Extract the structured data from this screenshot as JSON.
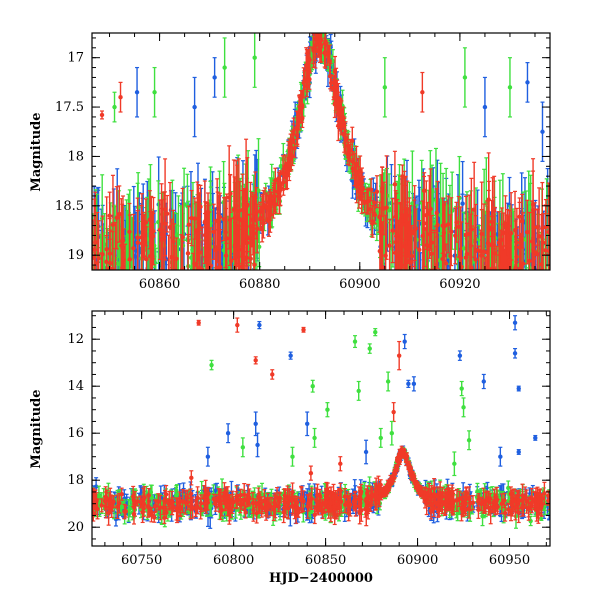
{
  "chart_data": [
    {
      "type": "scatter",
      "panel": "top",
      "title": "",
      "xlabel": "",
      "ylabel": "Magnitude",
      "xlim": [
        60846.5,
        60938
      ],
      "ylim": [
        19.15,
        16.75
      ],
      "y_inverted": true,
      "xticks": [
        60860,
        60880,
        60900,
        60920
      ],
      "yticks": [
        17,
        17.5,
        18,
        18.5,
        19
      ],
      "ytick_labels": [
        "17",
        "17.5",
        "18",
        "18.5",
        "19"
      ],
      "series": [
        {
          "name": "blue",
          "color": "#1f5fe0"
        },
        {
          "name": "green",
          "color": "#3fe03f"
        },
        {
          "name": "red",
          "color": "#f03a28"
        }
      ],
      "model": {
        "peak_x": 60892,
        "peak_mag": 16.8,
        "baseline_mag": 19.0,
        "tE": 5.5
      },
      "outliers": [
        {
          "series": "red",
          "x": 60848.5,
          "y": 17.58,
          "err": 0.04
        },
        {
          "series": "red",
          "x": 60852.2,
          "y": 17.4,
          "err": 0.15
        },
        {
          "series": "red",
          "x": 60912.5,
          "y": 17.35,
          "err": 0.2
        },
        {
          "series": "green",
          "x": 60851,
          "y": 17.5,
          "err": 0.15
        },
        {
          "series": "green",
          "x": 60859,
          "y": 17.35,
          "err": 0.25
        },
        {
          "series": "green",
          "x": 60873,
          "y": 17.1,
          "err": 0.3
        },
        {
          "series": "green",
          "x": 60879,
          "y": 17.0,
          "err": 0.3
        },
        {
          "series": "green",
          "x": 60905,
          "y": 17.3,
          "err": 0.3
        },
        {
          "series": "green",
          "x": 60921,
          "y": 17.2,
          "err": 0.3
        },
        {
          "series": "green",
          "x": 60930,
          "y": 17.3,
          "err": 0.3
        },
        {
          "series": "blue",
          "x": 60855.5,
          "y": 17.35,
          "err": 0.25
        },
        {
          "series": "blue",
          "x": 60867,
          "y": 17.5,
          "err": 0.3
        },
        {
          "series": "blue",
          "x": 60871,
          "y": 17.2,
          "err": 0.2
        },
        {
          "series": "blue",
          "x": 60925,
          "y": 17.5,
          "err": 0.3
        },
        {
          "series": "blue",
          "x": 60933.5,
          "y": 17.25,
          "err": 0.2
        },
        {
          "series": "blue",
          "x": 60936.5,
          "y": 17.75,
          "err": 0.3
        }
      ]
    },
    {
      "type": "scatter",
      "panel": "bottom",
      "title": "",
      "xlabel": "HJD−2400000",
      "ylabel": "Magnitude",
      "xlim": [
        60723,
        60972
      ],
      "ylim": [
        20.8,
        10.8
      ],
      "y_inverted": true,
      "xticks": [
        60750,
        60800,
        60850,
        60900,
        60950
      ],
      "yticks": [
        12,
        14,
        16,
        18,
        20
      ],
      "series": [
        {
          "name": "blue",
          "color": "#1f5fe0"
        },
        {
          "name": "green",
          "color": "#3fe03f"
        },
        {
          "name": "red",
          "color": "#f03a28"
        }
      ],
      "model": {
        "peak_x": 60892,
        "peak_mag": 16.8,
        "baseline_mag": 19.0,
        "tE": 5.5
      },
      "outliers": [
        {
          "series": "red",
          "x": 60781,
          "y": 11.3,
          "err": 0.1
        },
        {
          "series": "red",
          "x": 60802,
          "y": 11.4,
          "err": 0.3
        },
        {
          "series": "red",
          "x": 60812,
          "y": 12.9,
          "err": 0.15
        },
        {
          "series": "red",
          "x": 60821,
          "y": 13.5,
          "err": 0.2
        },
        {
          "series": "red",
          "x": 60838,
          "y": 11.6,
          "err": 0.1
        },
        {
          "series": "red",
          "x": 60887,
          "y": 15.1,
          "err": 0.4
        },
        {
          "series": "red",
          "x": 60890,
          "y": 12.7,
          "err": 0.6
        },
        {
          "series": "blue",
          "x": 60814,
          "y": 11.4,
          "err": 0.15
        },
        {
          "series": "blue",
          "x": 60831,
          "y": 12.7,
          "err": 0.15
        },
        {
          "series": "blue",
          "x": 60893,
          "y": 12.1,
          "err": 0.3
        },
        {
          "series": "blue",
          "x": 60895,
          "y": 13.9,
          "err": 0.15
        },
        {
          "series": "blue",
          "x": 60898,
          "y": 13.9,
          "err": 0.3
        },
        {
          "series": "blue",
          "x": 60923,
          "y": 12.7,
          "err": 0.2
        },
        {
          "series": "blue",
          "x": 60936,
          "y": 13.8,
          "err": 0.3
        },
        {
          "series": "blue",
          "x": 60953,
          "y": 11.3,
          "err": 0.3
        },
        {
          "series": "blue",
          "x": 60953,
          "y": 12.6,
          "err": 0.2
        },
        {
          "series": "blue",
          "x": 60955,
          "y": 14.1,
          "err": 0.1
        },
        {
          "series": "blue",
          "x": 60955,
          "y": 16.8,
          "err": 0.1
        },
        {
          "series": "blue",
          "x": 60964,
          "y": 16.2,
          "err": 0.1
        },
        {
          "series": "blue",
          "x": 60812,
          "y": 15.6,
          "err": 0.5
        },
        {
          "series": "blue",
          "x": 60813,
          "y": 16.5,
          "err": 0.5
        },
        {
          "series": "blue",
          "x": 60797,
          "y": 16.0,
          "err": 0.4
        },
        {
          "series": "blue",
          "x": 60840,
          "y": 15.6,
          "err": 0.5
        },
        {
          "series": "blue",
          "x": 60872,
          "y": 16.8,
          "err": 0.5
        },
        {
          "series": "blue",
          "x": 60945,
          "y": 17.0,
          "err": 0.4
        },
        {
          "series": "blue",
          "x": 60786,
          "y": 17.0,
          "err": 0.4
        },
        {
          "series": "green",
          "x": 60788,
          "y": 13.1,
          "err": 0.2
        },
        {
          "series": "green",
          "x": 60843,
          "y": 14.0,
          "err": 0.25
        },
        {
          "series": "green",
          "x": 60851,
          "y": 15.0,
          "err": 0.3
        },
        {
          "series": "green",
          "x": 60844,
          "y": 16.2,
          "err": 0.4
        },
        {
          "series": "green",
          "x": 60866,
          "y": 12.1,
          "err": 0.25
        },
        {
          "series": "green",
          "x": 60868,
          "y": 14.2,
          "err": 0.4
        },
        {
          "series": "green",
          "x": 60874,
          "y": 12.4,
          "err": 0.2
        },
        {
          "series": "green",
          "x": 60877,
          "y": 11.7,
          "err": 0.15
        },
        {
          "series": "green",
          "x": 60884,
          "y": 13.8,
          "err": 0.4
        },
        {
          "series": "green",
          "x": 60886,
          "y": 16.0,
          "err": 0.5
        },
        {
          "series": "green",
          "x": 60880,
          "y": 16.2,
          "err": 0.4
        },
        {
          "series": "green",
          "x": 60924,
          "y": 14.1,
          "err": 0.3
        },
        {
          "series": "green",
          "x": 60925,
          "y": 14.9,
          "err": 0.4
        },
        {
          "series": "green",
          "x": 60928,
          "y": 16.3,
          "err": 0.4
        },
        {
          "series": "green",
          "x": 60920,
          "y": 17.3,
          "err": 0.5
        },
        {
          "series": "green",
          "x": 60805,
          "y": 16.6,
          "err": 0.4
        },
        {
          "series": "green",
          "x": 60832,
          "y": 17.0,
          "err": 0.4
        },
        {
          "series": "red",
          "x": 60842,
          "y": 17.7,
          "err": 0.3
        },
        {
          "series": "red",
          "x": 60858,
          "y": 17.3,
          "err": 0.3
        },
        {
          "series": "red",
          "x": 60777,
          "y": 17.9,
          "err": 0.3
        }
      ]
    }
  ]
}
